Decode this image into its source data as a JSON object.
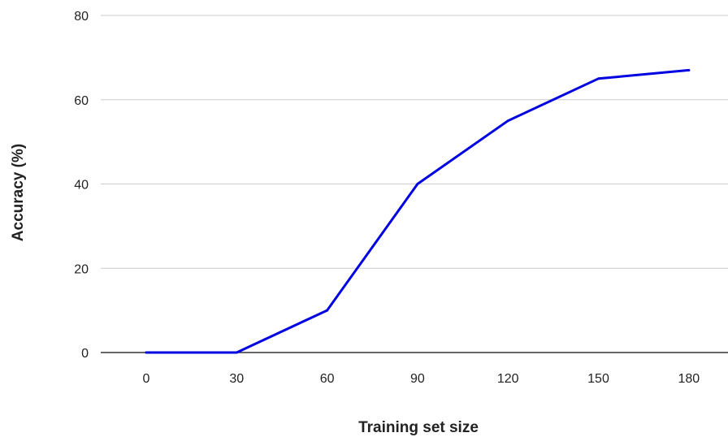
{
  "chart_data": {
    "type": "line",
    "title": "",
    "xlabel": "Training set size",
    "ylabel": "Accuracy (%)",
    "x": [
      0,
      30,
      60,
      90,
      120,
      150,
      180
    ],
    "x_ticks": [
      "0",
      "30",
      "60",
      "90",
      "120",
      "150",
      "180"
    ],
    "y_ticks": [
      "0",
      "20",
      "40",
      "60",
      "80"
    ],
    "ylim": [
      0,
      80
    ],
    "grid": "horizontal",
    "legend": "none",
    "series": [
      {
        "values": [
          0,
          0,
          10,
          40,
          55,
          65,
          67
        ],
        "color": "#0000e0"
      }
    ],
    "colors": {
      "gridline": "#cccccc",
      "baseline": "#333333"
    }
  }
}
